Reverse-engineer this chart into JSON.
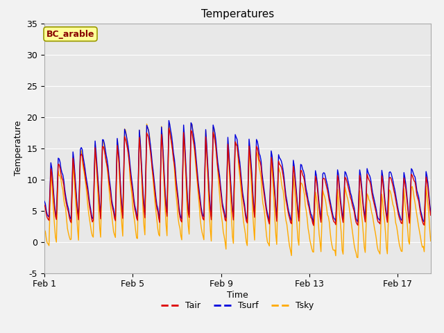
{
  "title": "Temperatures",
  "xlabel": "Time",
  "ylabel": "Temperature",
  "ylim": [
    -5,
    35
  ],
  "xlim_days": [
    0,
    17.5
  ],
  "x_ticks_days": [
    0,
    4,
    8,
    12,
    16
  ],
  "x_tick_labels": [
    "Feb 1",
    "Feb 5",
    "Feb 9",
    "Feb 13",
    "Feb 17"
  ],
  "yticks": [
    -5,
    0,
    5,
    10,
    15,
    20,
    25,
    30,
    35
  ],
  "tair_color": "#dd0000",
  "tsurf_color": "#0000dd",
  "tsky_color": "#ffaa00",
  "plot_bg_color": "#e8e8e8",
  "fig_bg_color": "#f2f2f2",
  "annotation_text": "BC_arable",
  "annotation_bg": "#ffff99",
  "annotation_edge": "#999900",
  "annotation_text_color": "#880000",
  "legend_labels": [
    "Tair",
    "Tsurf",
    "Tsky"
  ],
  "line_width": 1.0,
  "title_fontsize": 11,
  "label_fontsize": 9,
  "tick_fontsize": 9,
  "legend_fontsize": 9
}
